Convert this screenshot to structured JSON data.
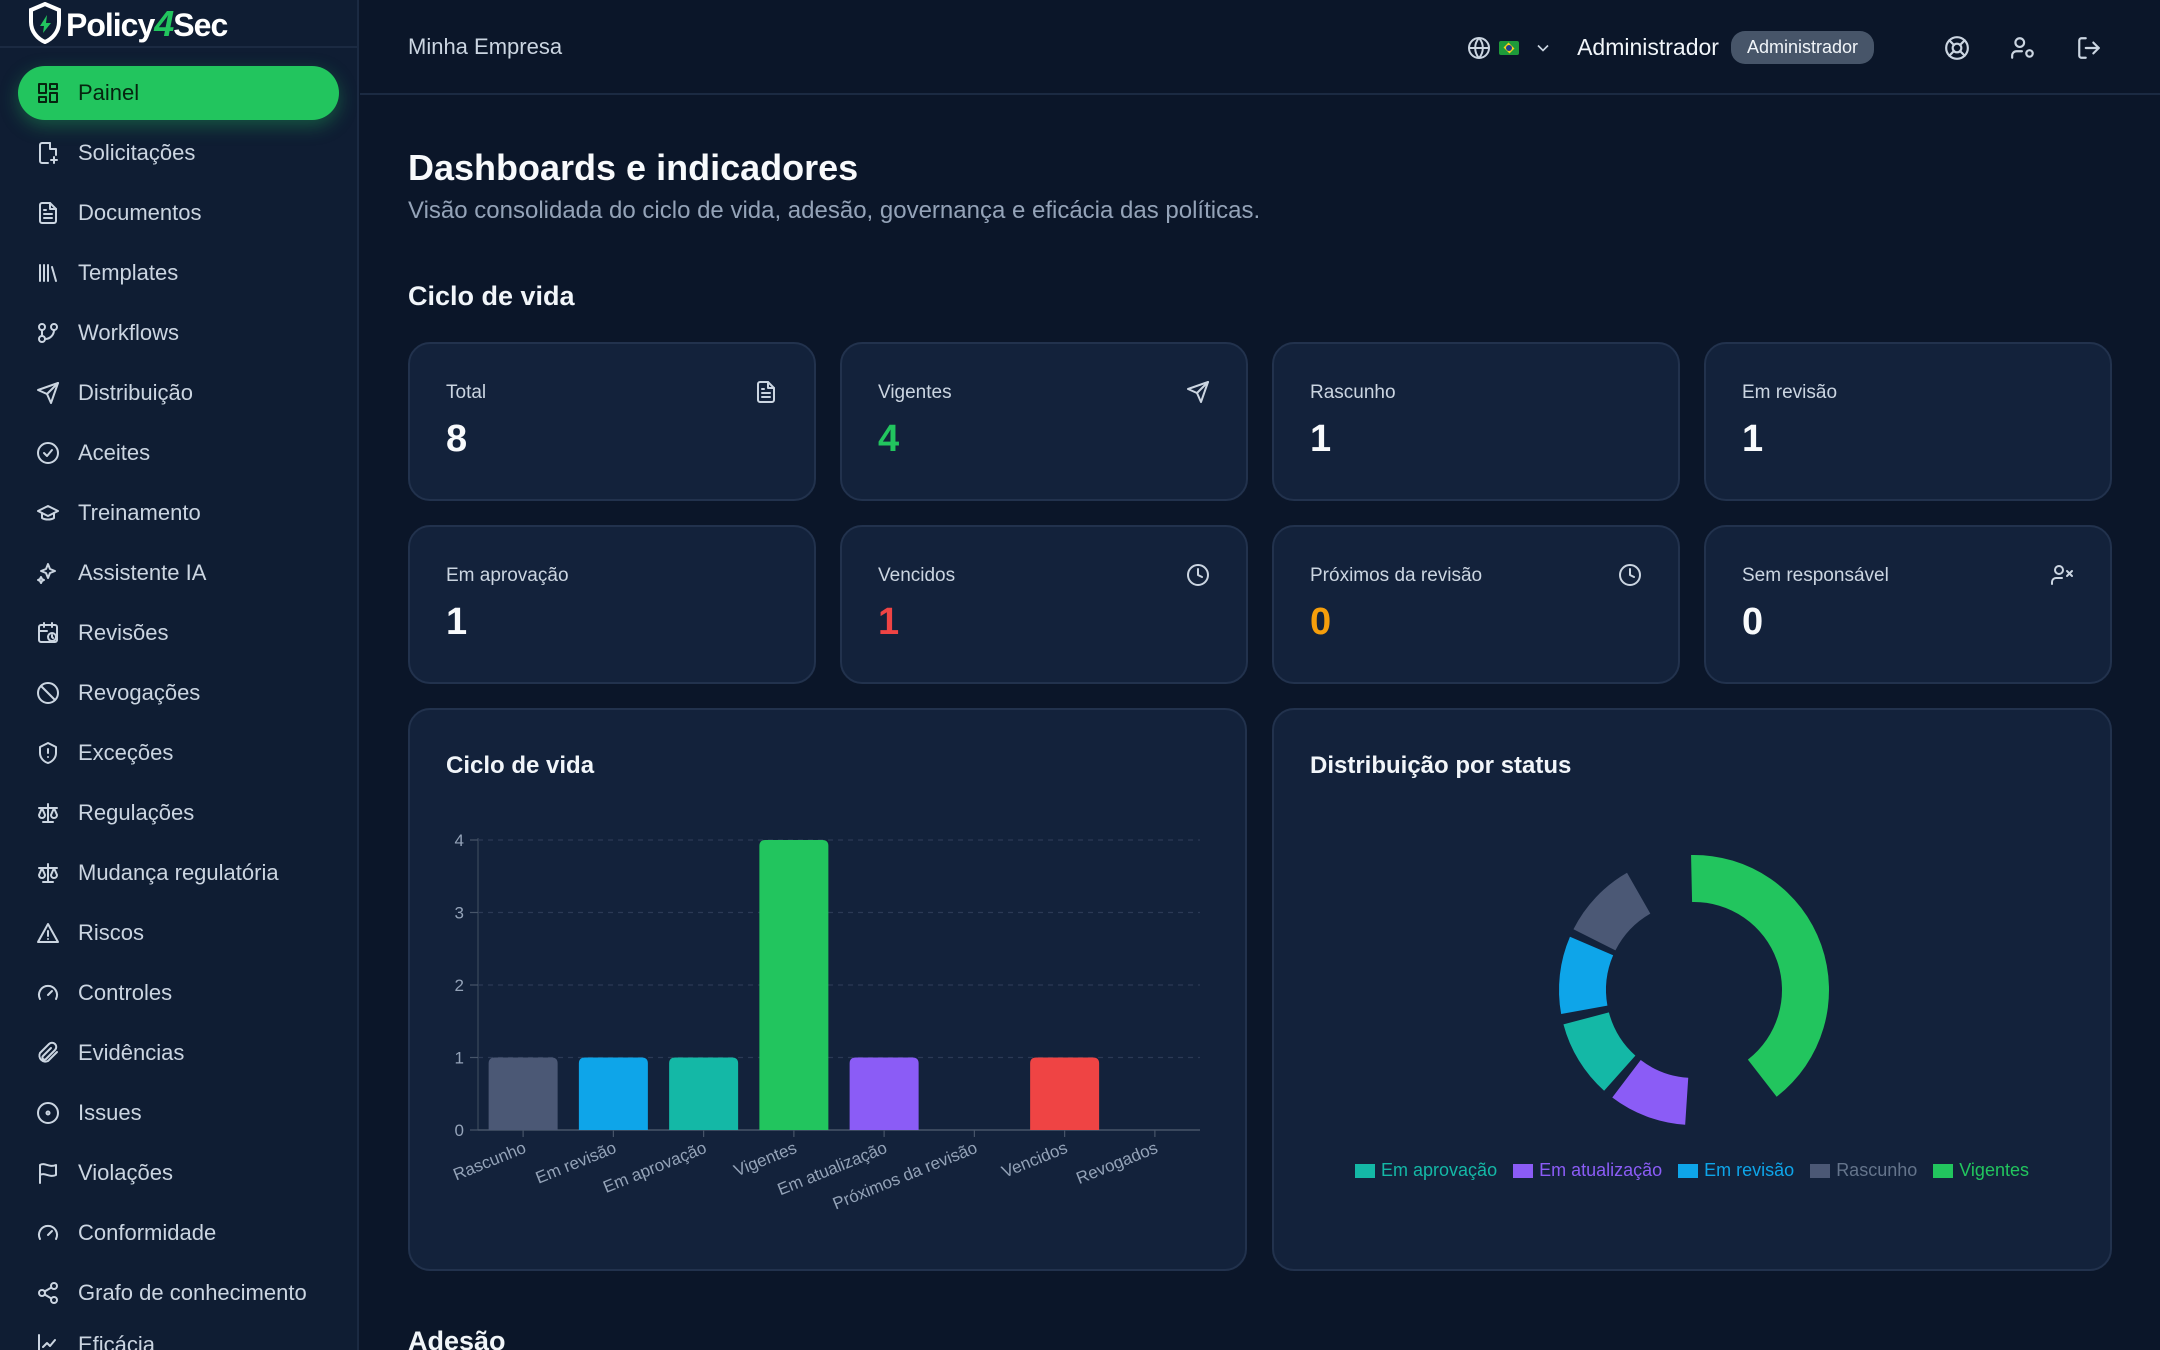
{
  "app": {
    "logo_prefix": "Policy",
    "logo_four": "4",
    "logo_suffix": "Sec"
  },
  "sidebar": {
    "items": [
      {
        "label": "Painel",
        "icon": "grid-icon",
        "active": true
      },
      {
        "label": "Solicitações",
        "icon": "file-plus-icon"
      },
      {
        "label": "Documentos",
        "icon": "file-text-icon"
      },
      {
        "label": "Templates",
        "icon": "library-icon"
      },
      {
        "label": "Workflows",
        "icon": "git-branch-icon"
      },
      {
        "label": "Distribuição",
        "icon": "send-icon"
      },
      {
        "label": "Aceites",
        "icon": "check-circle-icon"
      },
      {
        "label": "Treinamento",
        "icon": "graduation-cap-icon"
      },
      {
        "label": "Assistente IA",
        "icon": "sparkles-icon"
      },
      {
        "label": "Revisões",
        "icon": "calendar-clock-icon"
      },
      {
        "label": "Revogações",
        "icon": "ban-icon"
      },
      {
        "label": "Exceções",
        "icon": "shield-alert-icon"
      },
      {
        "label": "Regulações",
        "icon": "scale-icon"
      },
      {
        "label": "Mudança regulatória",
        "icon": "scale-icon"
      },
      {
        "label": "Riscos",
        "icon": "alert-triangle-icon"
      },
      {
        "label": "Controles",
        "icon": "gauge-icon"
      },
      {
        "label": "Evidências",
        "icon": "paperclip-icon"
      },
      {
        "label": "Issues",
        "icon": "circle-dot-icon"
      },
      {
        "label": "Violações",
        "icon": "flag-icon"
      },
      {
        "label": "Conformidade",
        "icon": "gauge-icon"
      },
      {
        "label": "Grafo de conhecimento",
        "icon": "share-icon"
      },
      {
        "label": "Eficácia",
        "icon": "chart-icon"
      }
    ]
  },
  "topbar": {
    "company": "Minha Empresa",
    "user_name": "Administrador",
    "role_badge": "Administrador"
  },
  "page": {
    "title": "Dashboards e indicadores",
    "subtitle": "Visão consolidada do ciclo de vida, adesão, governança e eficácia das políticas.",
    "section_lifecycle": "Ciclo de vida",
    "section_adhesion": "Adesão"
  },
  "stats": [
    {
      "label": "Total",
      "value": "8",
      "color": "#f8fafc",
      "icon": "file-text-icon"
    },
    {
      "label": "Vigentes",
      "value": "4",
      "color": "#22c55e",
      "icon": "send-icon"
    },
    {
      "label": "Rascunho",
      "value": "1",
      "color": "#f8fafc",
      "icon": ""
    },
    {
      "label": "Em revisão",
      "value": "1",
      "color": "#f8fafc",
      "icon": ""
    },
    {
      "label": "Em aprovação",
      "value": "1",
      "color": "#f8fafc",
      "icon": ""
    },
    {
      "label": "Vencidos",
      "value": "1",
      "color": "#ef4444",
      "icon": "clock-icon"
    },
    {
      "label": "Próximos da revisão",
      "value": "0",
      "color": "#f59e0b",
      "icon": "clock-icon"
    },
    {
      "label": "Sem responsável",
      "value": "0",
      "color": "#f8fafc",
      "icon": "user-x-icon"
    }
  ],
  "chart_data": [
    {
      "type": "bar",
      "title": "Ciclo de vida",
      "categories": [
        "Rascunho",
        "Em revisão",
        "Em aprovação",
        "Vigentes",
        "Em atualização",
        "Próximos da revisão",
        "Vencidos",
        "Revogados"
      ],
      "values": [
        1,
        1,
        1,
        4,
        1,
        0,
        1,
        0
      ],
      "colors": [
        "#4b5875",
        "#0ea5e9",
        "#14b8a6",
        "#22c55e",
        "#8b5cf6",
        "#64748b",
        "#ef4444",
        "#64748b"
      ],
      "ylim": [
        0,
        4
      ],
      "yticks": [
        0,
        1,
        2,
        3,
        4
      ],
      "grid": true
    },
    {
      "type": "pie",
      "title": "Distribuição por status",
      "labels": [
        "Em aprovação",
        "Em atualização",
        "Em revisão",
        "Rascunho",
        "Vigentes"
      ],
      "values": [
        1,
        1,
        1,
        1,
        4
      ],
      "colors": [
        "#14b8a6",
        "#8b5cf6",
        "#0ea5e9",
        "#4b5875",
        "#22c55e"
      ],
      "legend": "bottom"
    }
  ]
}
